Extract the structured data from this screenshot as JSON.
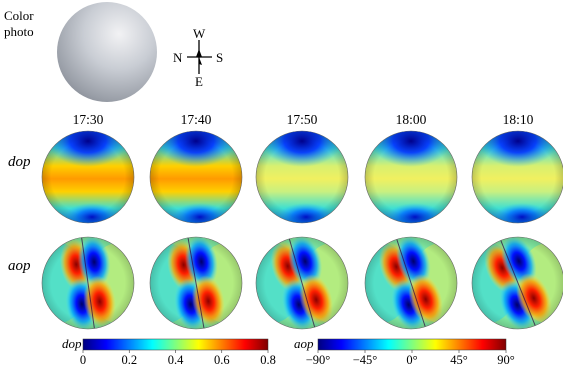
{
  "photo": {
    "label_line1": "Color",
    "label_line2": "photo"
  },
  "compass": {
    "north": "N",
    "south": "S",
    "west": "W",
    "east": "E"
  },
  "times": [
    "17:30",
    "17:40",
    "17:50",
    "18:00",
    "18:10"
  ],
  "rows": {
    "dop_label": "dop",
    "aop_label": "aop"
  },
  "colorbars": {
    "dop": {
      "label": "dop",
      "ticks": [
        "0",
        "0.2",
        "0.4",
        "0.6",
        "0.8"
      ],
      "range": [
        0,
        0.8
      ]
    },
    "aop": {
      "label": "aop",
      "ticks": [
        "−90°",
        "−45°",
        "0°",
        "45°",
        "90°"
      ],
      "range": [
        -90,
        90
      ]
    }
  },
  "colors": {
    "jet": [
      "#00007f",
      "#0000ff",
      "#007fff",
      "#00ffff",
      "#7fff7f",
      "#ffff00",
      "#ff7f00",
      "#ff0000",
      "#7f0000"
    ]
  }
}
